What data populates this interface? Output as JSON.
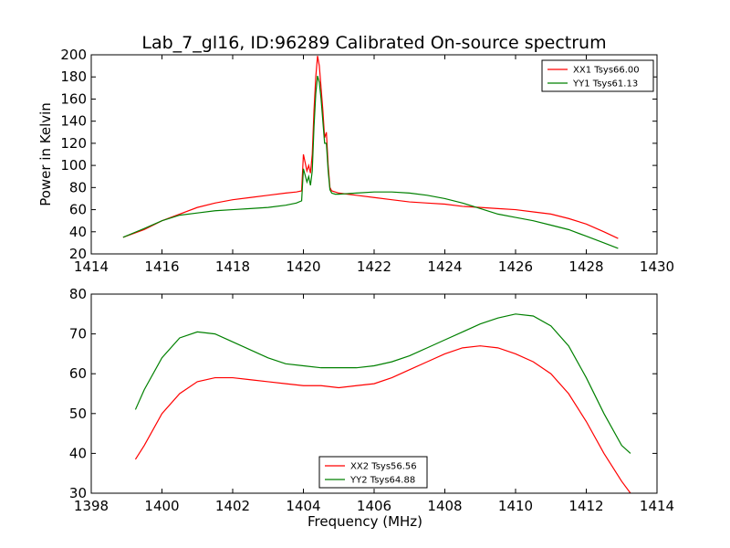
{
  "figure": {
    "title": "Lab_7_gl16, ID:96289 Calibrated On-source spectrum"
  },
  "chart_data": [
    {
      "type": "line",
      "ylabel": "Power in Kelvin",
      "xlabel": "",
      "xlim": [
        1414,
        1430
      ],
      "ylim": [
        20,
        200
      ],
      "x_ticks": [
        1414,
        1416,
        1418,
        1420,
        1422,
        1424,
        1426,
        1428,
        1430
      ],
      "y_ticks": [
        20,
        40,
        60,
        80,
        100,
        120,
        140,
        160,
        180,
        200
      ],
      "legend_position": "top-right",
      "grid": false,
      "series": [
        {
          "name": "XX1 Tsys66.00",
          "color": "#ff0000",
          "x": [
            1414.9,
            1415.5,
            1416.0,
            1416.5,
            1417.0,
            1417.5,
            1418.0,
            1418.5,
            1419.0,
            1419.5,
            1419.8,
            1419.95,
            1420.0,
            1420.1,
            1420.15,
            1420.2,
            1420.25,
            1420.3,
            1420.35,
            1420.4,
            1420.45,
            1420.5,
            1420.55,
            1420.6,
            1420.65,
            1420.7,
            1420.75,
            1420.8,
            1420.9,
            1421.0,
            1421.5,
            1422.0,
            1422.5,
            1423.0,
            1423.5,
            1424.0,
            1424.5,
            1425.0,
            1425.5,
            1426.0,
            1426.5,
            1427.0,
            1427.5,
            1428.0,
            1428.5,
            1428.9
          ],
          "values": [
            35,
            42,
            50,
            56,
            62,
            66,
            69,
            71,
            73,
            75,
            76,
            77,
            110,
            95,
            100,
            93,
            110,
            150,
            180,
            199,
            190,
            170,
            150,
            125,
            130,
            100,
            80,
            77,
            76,
            75,
            73,
            71,
            69,
            67,
            66,
            65,
            63,
            62,
            61,
            60,
            58,
            56,
            52,
            47,
            40,
            34
          ]
        },
        {
          "name": "YY1 Tsys61.13",
          "color": "#008000",
          "x": [
            1414.9,
            1415.5,
            1416.0,
            1416.5,
            1417.0,
            1417.5,
            1418.0,
            1418.5,
            1419.0,
            1419.5,
            1419.8,
            1419.95,
            1420.0,
            1420.1,
            1420.15,
            1420.2,
            1420.25,
            1420.3,
            1420.35,
            1420.4,
            1420.45,
            1420.5,
            1420.55,
            1420.6,
            1420.65,
            1420.7,
            1420.75,
            1420.8,
            1420.9,
            1421.0,
            1421.5,
            1422.0,
            1422.5,
            1423.0,
            1423.5,
            1424.0,
            1424.5,
            1425.0,
            1425.5,
            1426.0,
            1426.5,
            1427.0,
            1427.5,
            1428.0,
            1428.5,
            1428.9
          ],
          "values": [
            35,
            43,
            50,
            55,
            57,
            59,
            60,
            61,
            62,
            64,
            66,
            68,
            97,
            85,
            90,
            82,
            95,
            135,
            165,
            181,
            175,
            160,
            140,
            120,
            120,
            95,
            78,
            75,
            74,
            74,
            75,
            76,
            76,
            75,
            73,
            70,
            66,
            61,
            56,
            53,
            50,
            46,
            42,
            36,
            30,
            25
          ]
        }
      ]
    },
    {
      "type": "line",
      "ylabel": "",
      "xlabel": "Frequency (MHz)",
      "xlim": [
        1398,
        1414
      ],
      "ylim": [
        30,
        80
      ],
      "x_ticks": [
        1398,
        1400,
        1402,
        1404,
        1406,
        1408,
        1410,
        1412,
        1414
      ],
      "y_ticks": [
        30,
        40,
        50,
        60,
        70,
        80
      ],
      "legend_position": "bottom-center",
      "grid": false,
      "series": [
        {
          "name": "XX2 Tsys56.56",
          "color": "#ff0000",
          "x": [
            1399.25,
            1399.5,
            1400.0,
            1400.5,
            1401.0,
            1401.5,
            1402.0,
            1402.5,
            1403.0,
            1403.5,
            1404.0,
            1404.5,
            1405.0,
            1405.5,
            1406.0,
            1406.5,
            1407.0,
            1407.5,
            1408.0,
            1408.5,
            1409.0,
            1409.5,
            1410.0,
            1410.5,
            1411.0,
            1411.5,
            1412.0,
            1412.5,
            1413.0,
            1413.25
          ],
          "values": [
            38.5,
            42,
            50,
            55,
            58,
            59,
            59,
            58.5,
            58,
            57.5,
            57,
            57,
            56.5,
            57,
            57.5,
            59,
            61,
            63,
            65,
            66.5,
            67,
            66.5,
            65,
            63,
            60,
            55,
            48,
            40,
            33,
            30
          ]
        },
        {
          "name": "YY2 Tsys64.88",
          "color": "#008000",
          "x": [
            1399.25,
            1399.5,
            1400.0,
            1400.5,
            1401.0,
            1401.5,
            1402.0,
            1402.5,
            1403.0,
            1403.5,
            1404.0,
            1404.5,
            1405.0,
            1405.5,
            1406.0,
            1406.5,
            1407.0,
            1407.5,
            1408.0,
            1408.5,
            1409.0,
            1409.5,
            1410.0,
            1410.5,
            1411.0,
            1411.5,
            1412.0,
            1412.5,
            1413.0,
            1413.25
          ],
          "values": [
            51,
            56,
            64,
            69,
            70.5,
            70,
            68,
            66,
            64,
            62.5,
            62,
            61.5,
            61.5,
            61.5,
            62,
            63,
            64.5,
            66.5,
            68.5,
            70.5,
            72.5,
            74,
            75,
            74.5,
            72,
            67,
            59,
            50,
            42,
            40
          ]
        }
      ]
    }
  ]
}
